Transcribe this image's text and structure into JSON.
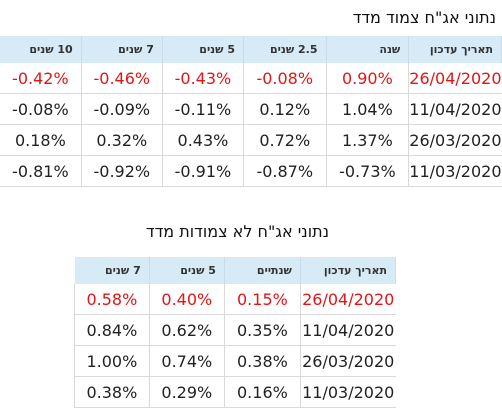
{
  "table1": {
    "title": "נתוני אג\"ח צמוד מדד",
    "headers": [
      "תאריך עדכון",
      "שנה",
      "2.5 שנים",
      "5 שנים",
      "7 שנים",
      "10 שנים"
    ],
    "rows": [
      [
        "26/04/2020",
        "0.90%",
        "-0.08%",
        "-0.43%",
        "-0.46%",
        "-0.42%"
      ],
      [
        "11/04/2020",
        "1.04%",
        "0.12%",
        "-0.11%",
        "-0.09%",
        "-0.08%"
      ],
      [
        "26/03/2020",
        "1.37%",
        "0.72%",
        "0.43%",
        "0.32%",
        "0.18%"
      ],
      [
        "11/03/2020",
        "-0.73%",
        "-0.87%",
        "-0.91%",
        "-0.92%",
        "-0.81%"
      ]
    ]
  },
  "table2": {
    "title": "נתוני אג\"ח לא צמודות מדד",
    "headers": [
      "תאריך עדכון",
      "שנתיים",
      "5 שנים",
      "7 שנים"
    ],
    "rows": [
      [
        "26/04/2020",
        "0.15%",
        "0.40%",
        "0.58%"
      ],
      [
        "11/04/2020",
        "0.35%",
        "0.62%",
        "0.84%"
      ],
      [
        "26/03/2020",
        "0.38%",
        "0.74%",
        "1.00%"
      ],
      [
        "11/03/2020",
        "0.16%",
        "0.29%",
        "0.38%"
      ]
    ]
  },
  "colors": {
    "header_bg": "#d7ebf6",
    "latest_row_text": "#e01616",
    "row_border": "#d9d9d9"
  }
}
